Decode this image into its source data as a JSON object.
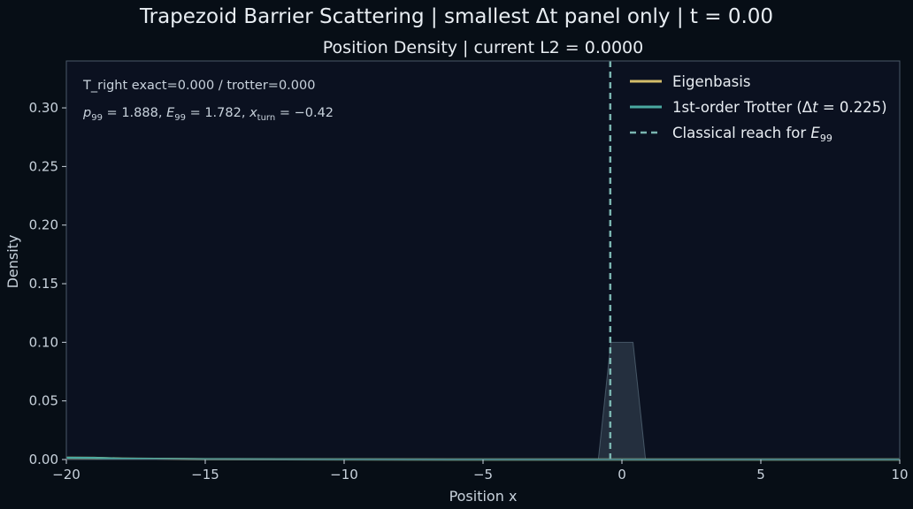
{
  "figure": {
    "suptitle": "Trapezoid Barrier Scattering | smallest Δt panel only | t = 0.00",
    "colors": {
      "figure_bg": "#070e16",
      "axes_bg": "#0b1120",
      "spine": "#4a5868",
      "text": "#e8edf2",
      "tick_text": "#c8d2dc"
    }
  },
  "chart_data": {
    "type": "line",
    "title": "Position Density  |  current L2 = 0.0000",
    "xlabel": "Position x",
    "ylabel": "Density",
    "xlim": [
      -20,
      10
    ],
    "ylim": [
      0,
      0.34
    ],
    "xticks": [
      -20,
      -15,
      -10,
      -5,
      0,
      5,
      10
    ],
    "xtick_labels": [
      "−20",
      "−15",
      "−10",
      "−5",
      "0",
      "5",
      "10"
    ],
    "yticks": [
      0,
      0.05,
      0.1,
      0.15,
      0.2,
      0.25,
      0.3
    ],
    "ytick_labels": [
      "0.00",
      "0.05",
      "0.10",
      "0.15",
      "0.20",
      "0.25",
      "0.30"
    ],
    "grid": false,
    "legend_position": "top-right",
    "annotations": {
      "line1": "T_right exact=0.000  /  trotter=0.000",
      "line2": {
        "p_sym": "p",
        "p_sub": "99",
        "p_val": " = 1.888, ",
        "e_sym": "E",
        "e_sub": "99",
        "e_val": " = 1.782, ",
        "x_sym": "x",
        "x_sub": "turn",
        "x_val": " = −0.42"
      }
    },
    "barrier": {
      "x": [
        -0.85,
        -0.4,
        0.4,
        0.85
      ],
      "y": [
        0,
        0.1,
        0.1,
        0
      ]
    },
    "series": [
      {
        "name": "Eigenbasis",
        "color": "#d4bd6a",
        "x": [
          -20,
          -19,
          -18,
          -15,
          -10,
          -5,
          0,
          5,
          10
        ],
        "y": [
          0.0015,
          0.0014,
          0.0008,
          0.0003,
          0.0001,
          0,
          0,
          0,
          0
        ]
      },
      {
        "name_prefix": "1st-order Trotter (",
        "name_dt_sym": "Δ",
        "name_dt_var": "t",
        "name_dt_val": " = 0.225)",
        "color": "#4aa9a0",
        "x": [
          -20,
          -19,
          -18,
          -15,
          -10,
          -5,
          0,
          5,
          10
        ],
        "y": [
          0.0015,
          0.0014,
          0.0008,
          0.0003,
          0.0001,
          0,
          0,
          0,
          0
        ]
      }
    ],
    "vline": {
      "x": -0.42,
      "color": "#7ab5b0",
      "label_prefix": "Classical reach for ",
      "label_sym": "E",
      "label_sub": "99"
    }
  }
}
